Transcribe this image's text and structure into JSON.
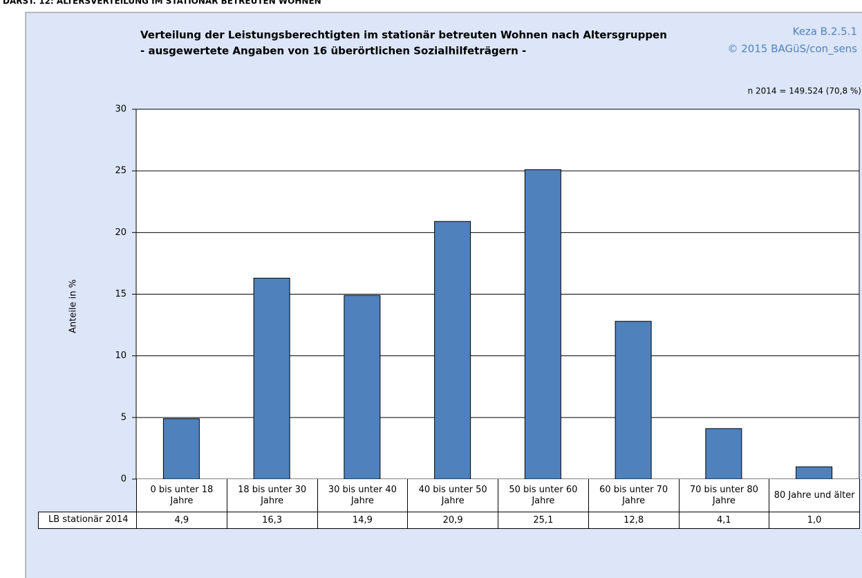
{
  "header": "DARST. 12: ALTERSVERTEILUNG IM STATIONÄR BETREUTEN WOHNEN",
  "chart_data": {
    "type": "bar",
    "title": "Verteilung der Leistungsberechtigten im stationär betreuten Wohnen nach Altersgruppen",
    "subtitle": "- ausgewertete Angaben von 16 überörtlichen Sozialhilfeträgern -",
    "source": [
      "Keza B.2.5.1",
      "© 2015 BAGüS/con_sens"
    ],
    "note": "n 2014 = 149.524 (70,8 %)",
    "y_label": "Anteile in %",
    "categories": [
      "0 bis unter 18 Jahre",
      "18 bis unter 30 Jahre",
      "30 bis unter 40 Jahre",
      "40 bis unter 50 Jahre",
      "50 bis unter 60 Jahre",
      "60 bis unter 70 Jahre",
      "70 bis unter 80 Jahre",
      "80 Jahre und älter"
    ],
    "series": [
      {
        "name": "LB stationär 2014",
        "color": "#4f81bd",
        "values": [
          4.9,
          16.3,
          14.9,
          20.9,
          25.1,
          12.8,
          4.1,
          1.0
        ],
        "value_labels": [
          "4,9",
          "16,3",
          "14,9",
          "20,9",
          "25,1",
          "12,8",
          "4,1",
          "1,0"
        ]
      }
    ],
    "ylim": [
      0,
      30
    ],
    "yticks": [
      0,
      5,
      10,
      15,
      20,
      25,
      30
    ],
    "grid": true
  }
}
